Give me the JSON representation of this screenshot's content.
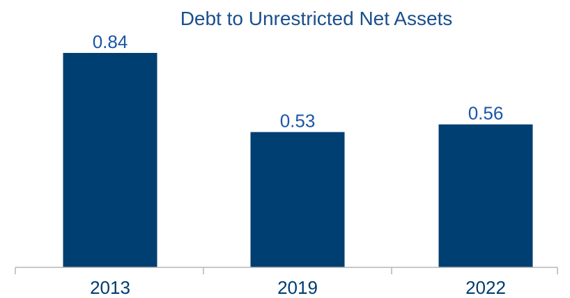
{
  "chart_data": {
    "type": "bar",
    "title": "Debt to Unrestricted Net Assets",
    "categories": [
      "2013",
      "2019",
      "2022"
    ],
    "values": [
      0.84,
      0.53,
      0.56
    ],
    "data_labels": [
      "0.84",
      "0.53",
      "0.56"
    ],
    "xlabel": "",
    "ylabel": "",
    "ylim": [
      0,
      0.9
    ],
    "grid": false,
    "legend": "none",
    "colors": {
      "bar": "#003f72",
      "title": "#1a4f8c",
      "data_label": "#1a56a6",
      "tick_label": "#003a70",
      "axis": "#b5b5b5"
    }
  }
}
